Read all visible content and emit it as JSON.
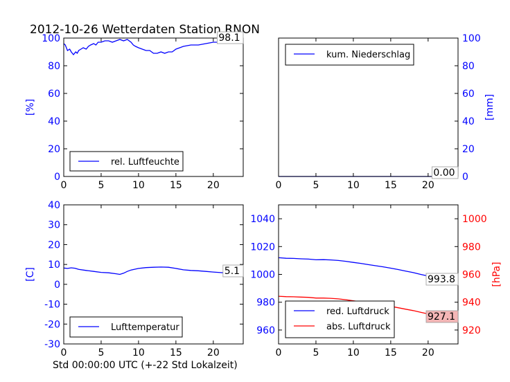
{
  "title": "2012-10-26 Wetterdaten Station RNON",
  "xlabel": "Std 00:00:00 UTC (+-22 Std Lokalzeit)",
  "colors": {
    "blue": "#0000ff",
    "red": "#ff0000",
    "box_red": "#f4b6b6"
  },
  "chart_data": [
    {
      "type": "line",
      "panel": "top-left",
      "ylabel": "[%]",
      "xlim": [
        0,
        24
      ],
      "ylim": [
        0,
        100
      ],
      "xticks": [
        0,
        5,
        10,
        15,
        20
      ],
      "yticks": [
        0,
        20,
        40,
        60,
        80,
        100
      ],
      "legend": {
        "placement": "lower-left",
        "entries": [
          "rel. Luftfeuchte"
        ]
      },
      "annotation": "98.1",
      "series": [
        {
          "name": "rel. Luftfeuchte",
          "color": "#0000ff",
          "x": [
            0,
            0.2,
            0.5,
            0.8,
            1.0,
            1.3,
            1.6,
            1.8,
            2.0,
            2.3,
            2.6,
            3.0,
            3.3,
            3.6,
            4.0,
            4.3,
            4.6,
            5.0,
            5.5,
            6.0,
            6.5,
            7.0,
            7.5,
            8.0,
            8.5,
            9.0,
            9.3,
            9.6,
            10.0,
            10.5,
            11.0,
            11.5,
            12.0,
            12.5,
            13.0,
            13.5,
            14.0,
            14.5,
            15.0,
            15.5,
            16.0,
            17.0,
            18.0,
            19.0,
            20.0,
            21.0,
            22.0,
            23.0,
            24.0
          ],
          "y": [
            96,
            95,
            91,
            92,
            90,
            88,
            90,
            89,
            91,
            92,
            93,
            92,
            94,
            95,
            96,
            95,
            97,
            97,
            98,
            98,
            97,
            98,
            99,
            98,
            99,
            97,
            95,
            94,
            93,
            92,
            91,
            91,
            89,
            89,
            90,
            89,
            90,
            90,
            92,
            93,
            94,
            95,
            95,
            96,
            97,
            97,
            97,
            98,
            98.1
          ]
        }
      ]
    },
    {
      "type": "line",
      "panel": "top-right",
      "ylabel": "[mm]",
      "xlim": [
        0,
        24
      ],
      "ylim": [
        0,
        100
      ],
      "xticks": [
        0,
        5,
        10,
        15,
        20
      ],
      "yticks": [
        0,
        20,
        40,
        60,
        80,
        100
      ],
      "legend": {
        "placement": "upper-left",
        "entries": [
          "kum. Niederschlag"
        ]
      },
      "annotation": "0.00",
      "series": [
        {
          "name": "kum. Niederschlag",
          "color": "#0000ff",
          "x": [
            0,
            24
          ],
          "y": [
            0,
            0
          ]
        }
      ]
    },
    {
      "type": "line",
      "panel": "bottom-left",
      "ylabel": "[C]",
      "xlim": [
        0,
        24
      ],
      "ylim": [
        -30,
        40
      ],
      "xticks": [
        0,
        5,
        10,
        15,
        20
      ],
      "yticks": [
        -30,
        -20,
        -10,
        0,
        10,
        20,
        30,
        40
      ],
      "legend": {
        "placement": "lower-left",
        "entries": [
          "Lufttemperatur"
        ]
      },
      "annotation": "5.1",
      "series": [
        {
          "name": "Lufttemperatur",
          "color": "#0000ff",
          "x": [
            0,
            0.5,
            1.0,
            1.5,
            2.0,
            3.0,
            4.0,
            5.0,
            6.0,
            7.0,
            7.5,
            8.0,
            8.5,
            9.0,
            10.0,
            11.0,
            12.0,
            13.0,
            14.0,
            15.0,
            16.0,
            17.0,
            18.0,
            19.0,
            20.0,
            21.0,
            22.0,
            23.0,
            24.0
          ],
          "y": [
            8.2,
            8.0,
            8.3,
            8.1,
            7.5,
            7.0,
            6.5,
            6.0,
            5.8,
            5.3,
            5.0,
            5.6,
            6.5,
            7.2,
            8.0,
            8.4,
            8.6,
            8.7,
            8.6,
            8.0,
            7.3,
            7.0,
            6.8,
            6.5,
            6.2,
            5.9,
            5.6,
            5.3,
            5.1
          ]
        }
      ]
    },
    {
      "type": "line",
      "panel": "bottom-right",
      "ylabel": "[hPa]",
      "xlim": [
        0,
        24
      ],
      "ylim_left": [
        950,
        1050
      ],
      "ylim_right": [
        910,
        1010
      ],
      "xticks": [
        0,
        5,
        10,
        15,
        20
      ],
      "yticks_left": [
        960,
        980,
        1000,
        1020,
        1040
      ],
      "yticks_right": [
        920,
        940,
        960,
        980,
        1000
      ],
      "legend": {
        "placement": "lower-left",
        "entries": [
          "red. Luftdruck",
          "abs. Luftdruck"
        ]
      },
      "annotations": [
        "993.8",
        "927.1"
      ],
      "series": [
        {
          "name": "red. Luftdruck",
          "color": "#0000ff",
          "axis": "left",
          "x": [
            0,
            1,
            2,
            3,
            4,
            5,
            6,
            7,
            8,
            9,
            10,
            11,
            12,
            13,
            14,
            15,
            16,
            17,
            18,
            19,
            20,
            21,
            22,
            23,
            24
          ],
          "y": [
            1012,
            1011.6,
            1011.5,
            1011.2,
            1011,
            1010.5,
            1010.6,
            1010.4,
            1010,
            1009.4,
            1008.6,
            1007.9,
            1007,
            1006.2,
            1005.4,
            1004.5,
            1003.5,
            1002.4,
            1001.3,
            1000,
            998.8,
            997.6,
            996.3,
            995.0,
            993.8
          ]
        },
        {
          "name": "abs. Luftdruck",
          "color": "#ff0000",
          "axis": "right",
          "x": [
            0,
            1,
            2,
            3,
            4,
            5,
            6,
            7,
            8,
            9,
            10,
            11,
            12,
            13,
            14,
            15,
            16,
            17,
            18,
            19,
            20,
            21,
            22,
            23,
            24
          ],
          "y": [
            944.3,
            944.0,
            943.9,
            943.7,
            943.5,
            943.0,
            943.0,
            942.8,
            942.4,
            941.8,
            941.0,
            940.3,
            939.5,
            938.7,
            937.9,
            937.0,
            936.0,
            935.0,
            934.0,
            932.8,
            931.6,
            930.5,
            929.3,
            928.2,
            927.1
          ]
        }
      ]
    }
  ]
}
